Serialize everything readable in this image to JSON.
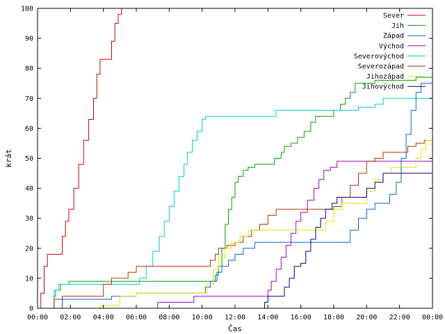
{
  "chart_data": {
    "type": "line",
    "title": "",
    "xlabel": "Čas",
    "ylabel": "krát",
    "xlim": [
      0,
      24
    ],
    "ylim": [
      0,
      100
    ],
    "x_unit": "hours",
    "x_ticks": [
      "00:00",
      "02:00",
      "04:00",
      "06:00",
      "08:00",
      "10:00",
      "12:00",
      "14:00",
      "16:00",
      "18:00",
      "20:00",
      "22:00",
      "00:00"
    ],
    "y_ticks": [
      "0",
      "10",
      "20",
      "30",
      "40",
      "50",
      "60",
      "70",
      "80",
      "90",
      "100"
    ],
    "grid": false,
    "legend_position": "top-right",
    "step_lines": true,
    "series": [
      {
        "name": "Sever",
        "color": "#d00000",
        "points": [
          [
            0,
            0
          ],
          [
            0.2,
            5
          ],
          [
            0.4,
            14
          ],
          [
            0.6,
            18
          ],
          [
            1.3,
            18
          ],
          [
            1.5,
            24
          ],
          [
            1.7,
            29
          ],
          [
            1.9,
            33
          ],
          [
            2.2,
            40
          ],
          [
            2.5,
            48
          ],
          [
            2.8,
            56
          ],
          [
            3.1,
            63
          ],
          [
            3.4,
            70
          ],
          [
            3.6,
            78
          ],
          [
            3.8,
            83
          ],
          [
            4.3,
            83
          ],
          [
            4.5,
            89
          ],
          [
            4.7,
            95
          ],
          [
            4.9,
            98
          ],
          [
            5.1,
            100
          ]
        ]
      },
      {
        "name": "Jih",
        "color": "#00a000",
        "points": [
          [
            0.9,
            0
          ],
          [
            1.0,
            4
          ],
          [
            1.1,
            6
          ],
          [
            1.3,
            6
          ],
          [
            1.4,
            8
          ],
          [
            1.9,
            9
          ],
          [
            3.0,
            9
          ],
          [
            6.0,
            9
          ],
          [
            10.5,
            9
          ],
          [
            10.8,
            11
          ],
          [
            11.0,
            14
          ],
          [
            11.2,
            20
          ],
          [
            11.4,
            28
          ],
          [
            11.6,
            33
          ],
          [
            11.8,
            37
          ],
          [
            12.0,
            42
          ],
          [
            12.2,
            44
          ],
          [
            12.5,
            46
          ],
          [
            12.8,
            47
          ],
          [
            13.2,
            48
          ],
          [
            14.0,
            48
          ],
          [
            14.4,
            50
          ],
          [
            14.8,
            52
          ],
          [
            15.0,
            54
          ],
          [
            15.4,
            55
          ],
          [
            15.8,
            57
          ],
          [
            16.2,
            59
          ],
          [
            16.6,
            62
          ],
          [
            16.9,
            64
          ],
          [
            17.8,
            64
          ],
          [
            18.0,
            66
          ],
          [
            18.4,
            68
          ],
          [
            18.7,
            70
          ],
          [
            19.0,
            72
          ],
          [
            19.3,
            75
          ],
          [
            20.0,
            75
          ],
          [
            20.5,
            76
          ],
          [
            22.0,
            76
          ],
          [
            23.0,
            77
          ],
          [
            24.0,
            78
          ]
        ]
      },
      {
        "name": "Západ",
        "color": "#0066cc",
        "points": [
          [
            1.3,
            0
          ],
          [
            1.5,
            3
          ],
          [
            2.2,
            3
          ],
          [
            4.0,
            3
          ],
          [
            4.5,
            4
          ],
          [
            6.0,
            5
          ],
          [
            7.0,
            5
          ],
          [
            10.0,
            5
          ],
          [
            10.2,
            7
          ],
          [
            10.5,
            9
          ],
          [
            10.9,
            12
          ],
          [
            11.2,
            14
          ],
          [
            11.6,
            16
          ],
          [
            12.0,
            18
          ],
          [
            12.5,
            20
          ],
          [
            13.0,
            20
          ],
          [
            13.2,
            22
          ],
          [
            15.0,
            22
          ],
          [
            16.0,
            22
          ],
          [
            18.0,
            22
          ],
          [
            18.5,
            22
          ],
          [
            19.0,
            26
          ],
          [
            19.5,
            30
          ],
          [
            20.0,
            33
          ],
          [
            20.5,
            35
          ],
          [
            21.0,
            35
          ],
          [
            21.4,
            38
          ],
          [
            21.8,
            42
          ],
          [
            22.1,
            50
          ],
          [
            22.4,
            58
          ],
          [
            22.7,
            66
          ],
          [
            23.0,
            72
          ],
          [
            23.3,
            75
          ],
          [
            24.0,
            76
          ]
        ]
      },
      {
        "name": "Východ",
        "color": "#a000c0",
        "points": [
          [
            7.3,
            0
          ],
          [
            7.3,
            2
          ],
          [
            9.0,
            2
          ],
          [
            9.5,
            4
          ],
          [
            13.8,
            4
          ],
          [
            14.0,
            6
          ],
          [
            14.2,
            9
          ],
          [
            14.5,
            13
          ],
          [
            14.8,
            17
          ],
          [
            15.1,
            21
          ],
          [
            15.4,
            25
          ],
          [
            15.7,
            29
          ],
          [
            16.0,
            32
          ],
          [
            16.4,
            36
          ],
          [
            16.8,
            40
          ],
          [
            17.1,
            43
          ],
          [
            17.4,
            46
          ],
          [
            17.8,
            47
          ],
          [
            18.2,
            49
          ],
          [
            19.5,
            49
          ],
          [
            24.0,
            49
          ]
        ]
      },
      {
        "name": "Severovýchod",
        "color": "#00cccc",
        "points": [
          [
            0.8,
            0
          ],
          [
            1.0,
            6
          ],
          [
            1.3,
            8
          ],
          [
            2.0,
            8
          ],
          [
            6.0,
            8
          ],
          [
            6.2,
            10
          ],
          [
            6.6,
            14
          ],
          [
            7.0,
            19
          ],
          [
            7.4,
            24
          ],
          [
            7.7,
            29
          ],
          [
            8.0,
            34
          ],
          [
            8.3,
            39
          ],
          [
            8.6,
            44
          ],
          [
            8.9,
            48
          ],
          [
            9.1,
            52
          ],
          [
            9.4,
            56
          ],
          [
            9.7,
            59
          ],
          [
            10.0,
            63
          ],
          [
            10.2,
            64
          ],
          [
            12.0,
            64
          ],
          [
            14.0,
            64
          ],
          [
            14.5,
            66
          ],
          [
            17.5,
            66
          ],
          [
            18.0,
            66
          ],
          [
            18.8,
            66
          ],
          [
            19.5,
            67
          ],
          [
            20.5,
            68
          ],
          [
            21.0,
            70
          ],
          [
            22.0,
            70
          ],
          [
            24.0,
            70
          ]
        ]
      },
      {
        "name": "Severozápad",
        "color": "#b03000",
        "points": [
          [
            0.8,
            0
          ],
          [
            1.0,
            3
          ],
          [
            1.5,
            4
          ],
          [
            3.0,
            4
          ],
          [
            4.0,
            8
          ],
          [
            4.5,
            10
          ],
          [
            5.5,
            12
          ],
          [
            6.0,
            14
          ],
          [
            7.0,
            14
          ],
          [
            9.0,
            14
          ],
          [
            10.2,
            14
          ],
          [
            10.5,
            16
          ],
          [
            10.8,
            18
          ],
          [
            11.0,
            20
          ],
          [
            11.5,
            21
          ],
          [
            12.0,
            22
          ],
          [
            12.5,
            24
          ],
          [
            13.0,
            26
          ],
          [
            13.5,
            28
          ],
          [
            14.0,
            31
          ],
          [
            14.5,
            33
          ],
          [
            15.0,
            33
          ],
          [
            16.0,
            33
          ],
          [
            17.0,
            33
          ],
          [
            18.0,
            34
          ],
          [
            18.5,
            37
          ],
          [
            19.0,
            41
          ],
          [
            19.5,
            45
          ],
          [
            20.0,
            49
          ],
          [
            20.5,
            50
          ],
          [
            21.0,
            52
          ],
          [
            22.0,
            52
          ],
          [
            22.5,
            54
          ],
          [
            23.0,
            55
          ],
          [
            23.5,
            56
          ],
          [
            24.0,
            56
          ]
        ]
      },
      {
        "name": "Jihozápad",
        "color": "#e8e000",
        "points": [
          [
            3.7,
            0
          ],
          [
            3.8,
            1
          ],
          [
            4.6,
            1
          ],
          [
            5.0,
            4
          ],
          [
            6.0,
            5
          ],
          [
            10.0,
            5
          ],
          [
            10.3,
            8
          ],
          [
            10.7,
            13
          ],
          [
            11.0,
            17
          ],
          [
            11.4,
            20
          ],
          [
            11.8,
            22
          ],
          [
            12.3,
            24
          ],
          [
            12.8,
            26
          ],
          [
            14.0,
            26
          ],
          [
            16.0,
            26
          ],
          [
            17.0,
            26
          ],
          [
            17.5,
            29
          ],
          [
            18.0,
            33
          ],
          [
            18.5,
            35
          ],
          [
            19.5,
            35
          ],
          [
            20.0,
            39
          ],
          [
            20.5,
            43
          ],
          [
            21.0,
            45
          ],
          [
            21.5,
            47
          ],
          [
            22.5,
            47
          ],
          [
            23.0,
            50
          ],
          [
            23.3,
            53
          ],
          [
            23.6,
            56
          ],
          [
            24.0,
            56
          ]
        ]
      },
      {
        "name": "Jihovýchod",
        "color": "#000080",
        "points": [
          [
            13.7,
            0
          ],
          [
            13.8,
            2
          ],
          [
            14.0,
            4
          ],
          [
            14.5,
            4
          ],
          [
            15.0,
            7
          ],
          [
            15.3,
            10
          ],
          [
            15.6,
            14
          ],
          [
            16.0,
            15
          ],
          [
            16.3,
            19
          ],
          [
            16.6,
            23
          ],
          [
            16.9,
            27
          ],
          [
            17.2,
            30
          ],
          [
            17.5,
            33
          ],
          [
            17.9,
            35
          ],
          [
            18.2,
            37
          ],
          [
            19.5,
            37
          ],
          [
            20.0,
            40
          ],
          [
            20.5,
            42
          ],
          [
            21.0,
            45
          ],
          [
            22.0,
            45
          ],
          [
            24.0,
            45
          ]
        ]
      }
    ]
  }
}
